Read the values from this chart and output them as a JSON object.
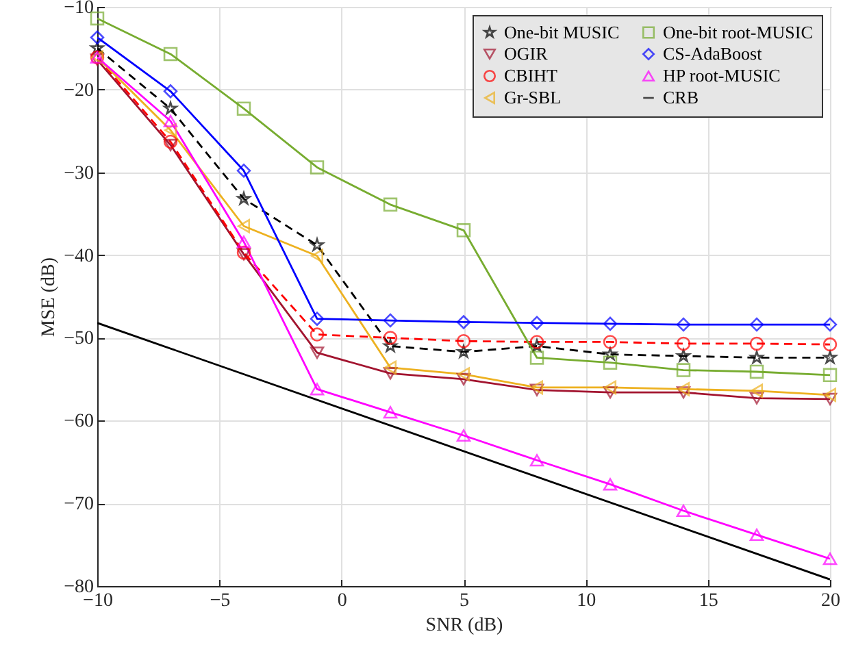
{
  "chart_data": {
    "type": "line",
    "xlabel": "SNR (dB)",
    "ylabel": "MSE (dB)",
    "x": [
      -10,
      -7,
      -4,
      -1,
      2,
      5,
      8,
      11,
      14,
      17,
      20
    ],
    "xlim": [
      -10,
      20
    ],
    "xticks": [
      -10,
      -5,
      0,
      5,
      10,
      15,
      20
    ],
    "ylim": [
      -80,
      -10
    ],
    "yticks": [
      -80,
      -70,
      -60,
      -50,
      -40,
      -30,
      -20,
      -10
    ],
    "grid": true,
    "legend": "top right",
    "series": [
      {
        "name": "One-bit MUSIC",
        "color": "#000000",
        "marker": "star",
        "line_style": "dashed",
        "values": [
          -15.0,
          -22.3,
          -33.2,
          -38.8,
          -51.0,
          -51.7,
          -51.0,
          -52.0,
          -52.2,
          -52.4,
          -52.4
        ]
      },
      {
        "name": "OGIR",
        "color": "#a2142f",
        "marker": "triangle-down",
        "line_style": "solid",
        "values": [
          -16.4,
          -26.7,
          -39.9,
          -51.8,
          -54.3,
          -55.0,
          -56.3,
          -56.6,
          -56.6,
          -57.3,
          -57.4
        ]
      },
      {
        "name": "CBIHT",
        "color": "#ff0000",
        "marker": "circle",
        "line_style": "dashed",
        "values": [
          -16.1,
          -26.3,
          -39.7,
          -49.6,
          -50.0,
          -50.4,
          -50.5,
          -50.5,
          -50.7,
          -50.7,
          -50.8
        ]
      },
      {
        "name": "Gr-SBL",
        "color": "#edb120",
        "marker": "triangle-left",
        "line_style": "solid",
        "values": [
          -16.1,
          -24.9,
          -36.5,
          -40.1,
          -53.6,
          -54.4,
          -56.0,
          -56.0,
          -56.2,
          -56.4,
          -56.9
        ]
      },
      {
        "name": "One-bit root-MUSIC",
        "color": "#77ac30",
        "marker": "square",
        "line_style": "solid",
        "values": [
          -11.4,
          -15.7,
          -22.3,
          -29.4,
          -33.9,
          -37.0,
          -52.4,
          -53.0,
          -53.9,
          -54.1,
          -54.5
        ]
      },
      {
        "name": "CS-AdaBoost",
        "color": "#0000ff",
        "marker": "diamond",
        "line_style": "solid",
        "values": [
          -13.7,
          -20.2,
          -29.8,
          -47.7,
          -47.9,
          -48.1,
          -48.2,
          -48.3,
          -48.4,
          -48.4,
          -48.4
        ]
      },
      {
        "name": "HP root-MUSIC",
        "color": "#ff00ff",
        "marker": "triangle-up",
        "line_style": "solid",
        "values": [
          -16.1,
          -23.8,
          -38.4,
          -56.2,
          -59.0,
          -61.8,
          -64.8,
          -67.7,
          -70.9,
          -73.8,
          -76.7
        ]
      },
      {
        "name": "CRB",
        "color": "#000000",
        "marker": "none",
        "line_style": "solid",
        "x": [
          -10,
          20
        ],
        "values": [
          -48.2,
          -79.2
        ]
      }
    ]
  }
}
